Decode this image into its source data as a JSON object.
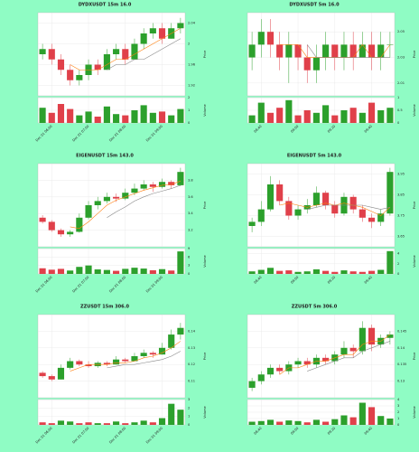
{
  "background": "#8ffcc4",
  "chart_data": [
    {
      "type": "candlestick",
      "title": "DYDXUSDT 15m 16.0",
      "ylabel": "Price",
      "vlabel": "Volume",
      "up_color": "#2ca02c",
      "down_color": "#e0404a",
      "grid": true,
      "ylim": [
        1.9,
        2.06
      ],
      "yticks": [
        1.92,
        1.96,
        2.0,
        2.04
      ],
      "vlim": [
        0,
        2
      ],
      "vticks": [
        0,
        1,
        2
      ],
      "xticks": [
        {
          "value": 1,
          "label": "Dec 01 06:00"
        },
        {
          "value": 5,
          "label": "Dec 01 07:00"
        },
        {
          "value": 9,
          "label": "Dec 01 08:00"
        },
        {
          "value": 13,
          "label": "Dec 01 09:00"
        }
      ],
      "ohlc": [
        [
          1.98,
          2.0,
          1.97,
          1.99
        ],
        [
          1.99,
          2.0,
          1.96,
          1.97
        ],
        [
          1.97,
          1.98,
          1.94,
          1.95
        ],
        [
          1.95,
          1.96,
          1.92,
          1.93
        ],
        [
          1.93,
          1.95,
          1.92,
          1.94
        ],
        [
          1.94,
          1.97,
          1.93,
          1.96
        ],
        [
          1.96,
          1.97,
          1.94,
          1.95
        ],
        [
          1.95,
          1.99,
          1.95,
          1.98
        ],
        [
          1.98,
          2.0,
          1.97,
          1.99
        ],
        [
          1.99,
          2.0,
          1.96,
          1.97
        ],
        [
          1.97,
          2.01,
          1.97,
          2.0
        ],
        [
          2.0,
          2.03,
          1.99,
          2.02
        ],
        [
          2.02,
          2.04,
          2.01,
          2.03
        ],
        [
          2.03,
          2.04,
          2.0,
          2.01
        ],
        [
          2.01,
          2.04,
          2.01,
          2.03
        ],
        [
          2.03,
          2.05,
          2.02,
          2.04
        ]
      ],
      "volume": [
        1.2,
        0.8,
        1.5,
        1.1,
        0.6,
        0.9,
        0.5,
        1.3,
        0.7,
        0.6,
        1.0,
        1.4,
        0.8,
        0.9,
        0.6,
        1.1
      ],
      "ma": [
        {
          "color": "#ff7f0e",
          "values": [
            null,
            null,
            null,
            1.96,
            1.95,
            1.95,
            1.95,
            1.96,
            1.97,
            1.97,
            1.98,
            1.99,
            2.0,
            2.01,
            2.02,
            2.03
          ]
        },
        {
          "color": "#888888",
          "values": [
            null,
            null,
            null,
            null,
            null,
            null,
            null,
            1.95,
            1.96,
            1.96,
            1.97,
            1.97,
            1.98,
            1.99,
            2.0,
            2.01
          ]
        }
      ]
    },
    {
      "type": "candlestick",
      "title": "DYDXUSDT 5m 16.0",
      "ylabel": "Price",
      "vlabel": "Volume",
      "up_color": "#2ca02c",
      "down_color": "#e0404a",
      "grid": true,
      "ylim": [
        2.0,
        2.065
      ],
      "yticks": [
        2.01,
        2.03,
        2.05
      ],
      "vlim": [
        0,
        1
      ],
      "vticks": [
        0,
        0.5,
        1
      ],
      "xticks": [
        {
          "value": 1,
          "label": "08:40"
        },
        {
          "value": 5,
          "label": "09:00"
        },
        {
          "value": 9,
          "label": "09:20"
        },
        {
          "value": 13,
          "label": "09:40"
        }
      ],
      "ohlc": [
        [
          2.03,
          2.05,
          2.02,
          2.04
        ],
        [
          2.04,
          2.06,
          2.03,
          2.05
        ],
        [
          2.05,
          2.06,
          2.03,
          2.04
        ],
        [
          2.04,
          2.05,
          2.02,
          2.03
        ],
        [
          2.03,
          2.05,
          2.01,
          2.04
        ],
        [
          2.04,
          2.04,
          2.02,
          2.03
        ],
        [
          2.03,
          2.04,
          2.01,
          2.02
        ],
        [
          2.02,
          2.04,
          2.01,
          2.03
        ],
        [
          2.03,
          2.05,
          2.02,
          2.04
        ],
        [
          2.04,
          2.04,
          2.02,
          2.03
        ],
        [
          2.03,
          2.05,
          2.02,
          2.04
        ],
        [
          2.04,
          2.05,
          2.02,
          2.03
        ],
        [
          2.03,
          2.05,
          2.03,
          2.04
        ],
        [
          2.04,
          2.05,
          2.02,
          2.03
        ],
        [
          2.03,
          2.05,
          2.02,
          2.04
        ],
        [
          2.04,
          2.05,
          2.03,
          2.04
        ]
      ],
      "volume": [
        0.3,
        0.8,
        0.4,
        0.6,
        0.9,
        0.3,
        0.5,
        0.4,
        0.7,
        0.3,
        0.5,
        0.6,
        0.4,
        0.8,
        0.5,
        0.6
      ],
      "ma": [
        {
          "color": "#ff7f0e",
          "values": [
            null,
            null,
            null,
            2.04,
            2.04,
            2.04,
            2.03,
            2.03,
            2.03,
            2.03,
            2.03,
            2.03,
            2.04,
            2.03,
            2.03,
            2.04
          ]
        },
        {
          "color": "#888888",
          "values": [
            null,
            null,
            null,
            null,
            null,
            null,
            2.04,
            2.03,
            2.03,
            2.03,
            2.03,
            2.03,
            2.03,
            2.03,
            2.03,
            2.03
          ]
        }
      ]
    },
    {
      "type": "candlestick",
      "title": "EIGENUSDT 15m 143.0",
      "ylabel": "Price",
      "vlabel": "Volume",
      "up_color": "#2ca02c",
      "down_color": "#e0404a",
      "grid": true,
      "ylim": [
        3.0,
        4.0
      ],
      "yticks": [
        3.2,
        3.4,
        3.6,
        3.8
      ],
      "vlim": [
        0,
        9
      ],
      "vticks": [
        0,
        3,
        6,
        9
      ],
      "xticks": [
        {
          "value": 1,
          "label": "Dec 01 06:00"
        },
        {
          "value": 5,
          "label": "Dec 01 07:00"
        },
        {
          "value": 9,
          "label": "Dec 01 08:00"
        },
        {
          "value": 13,
          "label": "Dec 01 09:00"
        }
      ],
      "ohlc": [
        [
          3.35,
          3.38,
          3.28,
          3.3
        ],
        [
          3.3,
          3.32,
          3.18,
          3.2
        ],
        [
          3.2,
          3.22,
          3.12,
          3.15
        ],
        [
          3.15,
          3.2,
          3.12,
          3.18
        ],
        [
          3.18,
          3.4,
          3.17,
          3.35
        ],
        [
          3.35,
          3.55,
          3.33,
          3.5
        ],
        [
          3.5,
          3.6,
          3.45,
          3.55
        ],
        [
          3.55,
          3.65,
          3.52,
          3.6
        ],
        [
          3.6,
          3.64,
          3.54,
          3.58
        ],
        [
          3.58,
          3.7,
          3.56,
          3.65
        ],
        [
          3.65,
          3.76,
          3.62,
          3.7
        ],
        [
          3.7,
          3.8,
          3.68,
          3.75
        ],
        [
          3.75,
          3.78,
          3.66,
          3.72
        ],
        [
          3.72,
          3.82,
          3.7,
          3.78
        ],
        [
          3.78,
          3.8,
          3.7,
          3.74
        ],
        [
          3.74,
          3.95,
          3.73,
          3.9
        ]
      ],
      "volume": [
        2,
        1.5,
        1.8,
        1.2,
        2.5,
        3,
        1.6,
        1.4,
        1.1,
        1.8,
        2.2,
        1.9,
        1.3,
        1.7,
        1.2,
        8
      ],
      "ma": [
        {
          "color": "#ff7f0e",
          "values": [
            null,
            null,
            null,
            3.24,
            3.22,
            3.3,
            3.4,
            3.5,
            3.56,
            3.6,
            3.64,
            3.68,
            3.71,
            3.74,
            3.75,
            3.79
          ]
        },
        {
          "color": "#888888",
          "values": [
            null,
            null,
            null,
            null,
            null,
            null,
            null,
            3.35,
            3.42,
            3.48,
            3.55,
            3.6,
            3.64,
            3.67,
            3.7,
            3.74
          ]
        }
      ]
    },
    {
      "type": "candlestick",
      "title": "EIGENUSDT 5m 143.0",
      "ylabel": "Price",
      "vlabel": "Volume",
      "up_color": "#2ca02c",
      "down_color": "#e0404a",
      "grid": true,
      "ylim": [
        3.6,
        4.0
      ],
      "yticks": [
        3.65,
        3.75,
        3.85,
        3.95
      ],
      "vlim": [
        0,
        5
      ],
      "vticks": [
        0,
        2,
        4
      ],
      "xticks": [
        {
          "value": 1,
          "label": "08:40"
        },
        {
          "value": 5,
          "label": "09:00"
        },
        {
          "value": 9,
          "label": "09:20"
        },
        {
          "value": 13,
          "label": "09:40"
        }
      ],
      "ohlc": [
        [
          3.7,
          3.74,
          3.67,
          3.72
        ],
        [
          3.72,
          3.82,
          3.7,
          3.78
        ],
        [
          3.78,
          3.94,
          3.77,
          3.9
        ],
        [
          3.9,
          3.92,
          3.8,
          3.82
        ],
        [
          3.82,
          3.84,
          3.73,
          3.75
        ],
        [
          3.75,
          3.8,
          3.73,
          3.78
        ],
        [
          3.78,
          3.83,
          3.76,
          3.8
        ],
        [
          3.8,
          3.89,
          3.79,
          3.86
        ],
        [
          3.86,
          3.87,
          3.78,
          3.8
        ],
        [
          3.8,
          3.82,
          3.74,
          3.76
        ],
        [
          3.76,
          3.86,
          3.75,
          3.84
        ],
        [
          3.84,
          3.85,
          3.76,
          3.78
        ],
        [
          3.78,
          3.8,
          3.72,
          3.74
        ],
        [
          3.74,
          3.76,
          3.69,
          3.72
        ],
        [
          3.72,
          3.78,
          3.7,
          3.76
        ],
        [
          3.76,
          3.98,
          3.75,
          3.96
        ]
      ],
      "volume": [
        0.5,
        0.8,
        1.2,
        0.6,
        0.7,
        0.4,
        0.5,
        0.9,
        0.6,
        0.4,
        0.7,
        0.5,
        0.4,
        0.6,
        0.8,
        4.5
      ],
      "ma": [
        {
          "color": "#ff7f0e",
          "values": [
            null,
            null,
            null,
            3.8,
            3.81,
            3.8,
            3.79,
            3.8,
            3.81,
            3.8,
            3.81,
            3.8,
            3.79,
            3.77,
            3.75,
            3.79
          ]
        },
        {
          "color": "#888888",
          "values": [
            null,
            null,
            null,
            null,
            null,
            null,
            3.78,
            3.79,
            3.8,
            3.8,
            3.8,
            3.8,
            3.8,
            3.79,
            3.78,
            3.79
          ]
        }
      ]
    },
    {
      "type": "candlestick",
      "title": "ZZUSDT 15m 306.0",
      "ylabel": "Price",
      "vlabel": "Volume",
      "up_color": "#2ca02c",
      "down_color": "#e0404a",
      "grid": true,
      "ylim": [
        0.1,
        0.15
      ],
      "yticks": [
        0.11,
        0.12,
        0.13,
        0.14
      ],
      "vlim": [
        0,
        3
      ],
      "vticks": [
        0,
        1,
        2,
        3
      ],
      "xticks": [
        {
          "value": 1,
          "label": "Dec 01 06:00"
        },
        {
          "value": 5,
          "label": "Dec 01 07:00"
        },
        {
          "value": 9,
          "label": "Dec 01 08:00"
        },
        {
          "value": 13,
          "label": "Dec 01 09:00"
        }
      ],
      "ohlc": [
        [
          0.115,
          0.116,
          0.112,
          0.113
        ],
        [
          0.113,
          0.114,
          0.11,
          0.111
        ],
        [
          0.111,
          0.12,
          0.111,
          0.118
        ],
        [
          0.118,
          0.124,
          0.117,
          0.122
        ],
        [
          0.122,
          0.123,
          0.119,
          0.12
        ],
        [
          0.12,
          0.122,
          0.118,
          0.119
        ],
        [
          0.119,
          0.122,
          0.118,
          0.121
        ],
        [
          0.121,
          0.122,
          0.119,
          0.12
        ],
        [
          0.12,
          0.125,
          0.12,
          0.123
        ],
        [
          0.123,
          0.124,
          0.121,
          0.122
        ],
        [
          0.122,
          0.127,
          0.122,
          0.125
        ],
        [
          0.125,
          0.129,
          0.124,
          0.127
        ],
        [
          0.127,
          0.128,
          0.124,
          0.126
        ],
        [
          0.126,
          0.133,
          0.126,
          0.13
        ],
        [
          0.13,
          0.141,
          0.129,
          0.138
        ],
        [
          0.138,
          0.145,
          0.135,
          0.142
        ]
      ],
      "volume": [
        0.3,
        0.2,
        0.5,
        0.4,
        0.2,
        0.3,
        0.2,
        0.2,
        0.4,
        0.2,
        0.3,
        0.5,
        0.3,
        0.8,
        2.5,
        1.8
      ],
      "ma": [
        {
          "color": "#ff7f0e",
          "values": [
            null,
            null,
            null,
            0.116,
            0.118,
            0.12,
            0.12,
            0.12,
            0.121,
            0.121,
            0.122,
            0.124,
            0.125,
            0.127,
            0.13,
            0.134
          ]
        },
        {
          "color": "#888888",
          "values": [
            null,
            null,
            null,
            null,
            null,
            null,
            null,
            0.118,
            0.119,
            0.12,
            0.12,
            0.121,
            0.122,
            0.123,
            0.125,
            0.128
          ]
        }
      ]
    },
    {
      "type": "candlestick",
      "title": "ZZUSDT 5m 306.0",
      "ylabel": "Price",
      "vlabel": "Volume",
      "up_color": "#2ca02c",
      "down_color": "#e0404a",
      "grid": true,
      "ylim": [
        0.125,
        0.15
      ],
      "yticks": [
        0.13,
        0.135,
        0.14,
        0.145
      ],
      "vlim": [
        0,
        4
      ],
      "vticks": [
        0,
        1,
        2,
        3,
        4
      ],
      "xticks": [
        {
          "value": 1,
          "label": "08:40"
        },
        {
          "value": 5,
          "label": "09:00"
        },
        {
          "value": 9,
          "label": "09:20"
        },
        {
          "value": 13,
          "label": "09:40"
        }
      ],
      "ohlc": [
        [
          0.128,
          0.131,
          0.127,
          0.13
        ],
        [
          0.13,
          0.133,
          0.129,
          0.132
        ],
        [
          0.132,
          0.135,
          0.131,
          0.134
        ],
        [
          0.134,
          0.135,
          0.132,
          0.133
        ],
        [
          0.133,
          0.136,
          0.132,
          0.135
        ],
        [
          0.135,
          0.137,
          0.134,
          0.136
        ],
        [
          0.136,
          0.137,
          0.134,
          0.135
        ],
        [
          0.135,
          0.138,
          0.134,
          0.137
        ],
        [
          0.137,
          0.138,
          0.135,
          0.136
        ],
        [
          0.136,
          0.139,
          0.135,
          0.138
        ],
        [
          0.138,
          0.142,
          0.137,
          0.14
        ],
        [
          0.14,
          0.141,
          0.137,
          0.139
        ],
        [
          0.139,
          0.148,
          0.138,
          0.146
        ],
        [
          0.146,
          0.147,
          0.139,
          0.141
        ],
        [
          0.141,
          0.144,
          0.14,
          0.143
        ],
        [
          0.143,
          0.145,
          0.141,
          0.144
        ]
      ],
      "volume": [
        0.5,
        0.6,
        0.8,
        0.5,
        0.7,
        0.6,
        0.4,
        0.8,
        0.5,
        0.9,
        1.5,
        1.2,
        3.5,
        2.8,
        1.4,
        1.0
      ],
      "ma": [
        {
          "color": "#ff7f0e",
          "values": [
            null,
            null,
            null,
            0.132,
            0.134,
            0.134,
            0.135,
            0.136,
            0.136,
            0.137,
            0.138,
            0.138,
            0.141,
            0.142,
            0.142,
            0.144
          ]
        },
        {
          "color": "#888888",
          "values": [
            null,
            null,
            null,
            null,
            null,
            null,
            0.133,
            0.134,
            0.135,
            0.136,
            0.137,
            0.137,
            0.139,
            0.14,
            0.141,
            0.142
          ]
        }
      ]
    }
  ]
}
